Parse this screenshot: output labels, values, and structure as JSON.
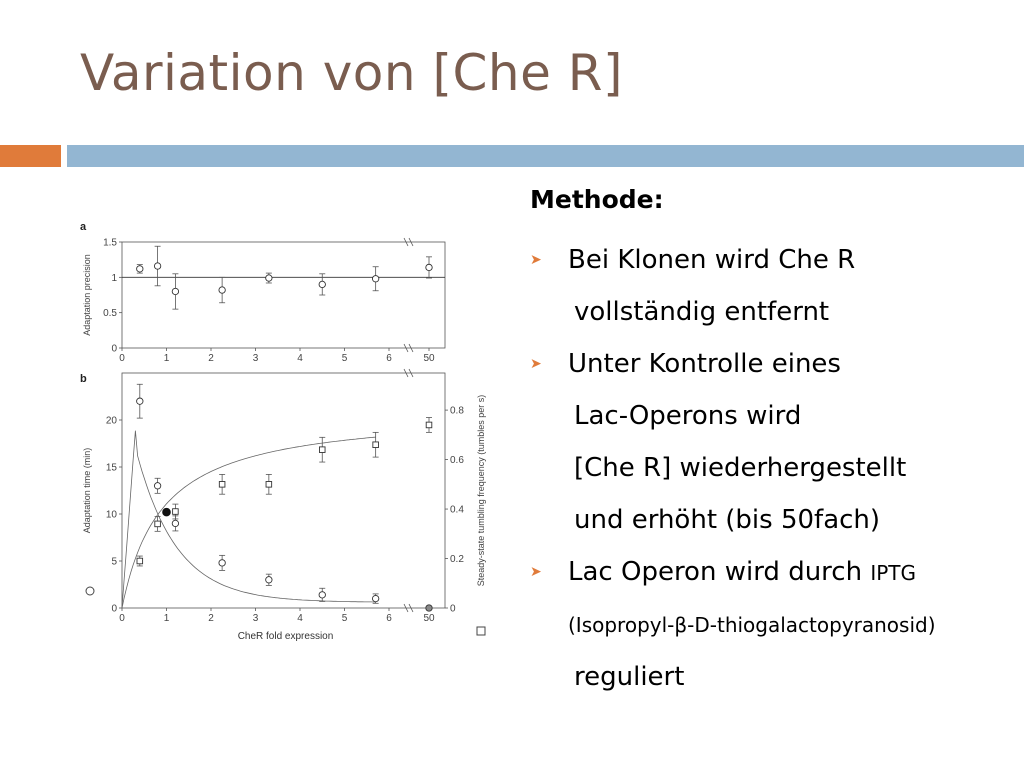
{
  "slide": {
    "title": "Variation von [Che R]",
    "heading": "Methode:",
    "bullets": [
      {
        "lines": [
          "Bei Klonen wird Che R",
          "vollständig entfernt"
        ]
      },
      {
        "lines": [
          "Unter Kontrolle eines",
          "Lac-Operons wird",
          "[Che R] wiederhergestellt",
          "und erhöht (bis 50fach)"
        ]
      },
      {
        "lines": [
          "Lac Operon wird durch ",
          "(Isopropyl-β-D-thiogalactopyranosid)",
          "reguliert"
        ],
        "small_suffix": "IPTG"
      }
    ],
    "colors": {
      "title": "#7a5d4f",
      "accent_orange": "#e07b3a",
      "accent_blue": "#93b6d2",
      "bullet_arrow": "#e07b3a"
    },
    "bullet_icon": "arrowhead-bullet-icon"
  },
  "chart_data": [
    {
      "panel": "a",
      "type": "scatter",
      "ylabel": "Adaptation precision",
      "xlabel": "",
      "xticks": [
        "0",
        "1",
        "2",
        "3",
        "4",
        "5",
        "6",
        "50"
      ],
      "yticks": [
        "0",
        "0.5",
        "1",
        "1.5"
      ],
      "ylim": [
        0,
        1.5
      ],
      "reference_line": 1,
      "series": [
        {
          "marker": "circle",
          "points": [
            {
              "x": 0.4,
              "y": 1.12,
              "err": 0.06
            },
            {
              "x": 0.8,
              "y": 1.16,
              "err": 0.28
            },
            {
              "x": 1.2,
              "y": 0.8,
              "err": 0.25
            },
            {
              "x": 2.25,
              "y": 0.82,
              "err": 0.18
            },
            {
              "x": 3.3,
              "y": 0.99,
              "err": 0.07
            },
            {
              "x": 4.5,
              "y": 0.9,
              "err": 0.15
            },
            {
              "x": 5.7,
              "y": 0.98,
              "err": 0.17
            },
            {
              "x": 50,
              "y": 1.14,
              "err": 0.15
            }
          ]
        }
      ]
    },
    {
      "panel": "b",
      "type": "scatter",
      "xlabel": "CheR fold expression",
      "ylabel": "Adaptation time (min)",
      "y2label": "Steady-state tumbling frequency (tumbles per s)",
      "xticks": [
        "0",
        "1",
        "2",
        "3",
        "4",
        "5",
        "6",
        "50"
      ],
      "yticks": [
        "0",
        "5",
        "10",
        "15",
        "20"
      ],
      "y2ticks": [
        "0",
        "0.2",
        "0.4",
        "0.6",
        "0.8"
      ],
      "ylim": [
        0,
        25
      ],
      "y2lim": [
        0,
        0.95
      ],
      "series": [
        {
          "axis": "left",
          "marker": "circle",
          "points": [
            {
              "x": 0.4,
              "y": 22,
              "err": 1.8
            },
            {
              "x": 0.8,
              "y": 13,
              "err": 0.8
            },
            {
              "x": 1.2,
              "y": 9,
              "err": 0.8
            },
            {
              "x": 2.25,
              "y": 4.8,
              "err": 0.8
            },
            {
              "x": 3.3,
              "y": 3,
              "err": 0.6
            },
            {
              "x": 4.5,
              "y": 1.4,
              "err": 0.7
            },
            {
              "x": 5.7,
              "y": 1,
              "err": 0.5
            },
            {
              "x": 50,
              "y": 0,
              "err": 0
            }
          ]
        },
        {
          "axis": "left",
          "marker": "filled-circle",
          "points": [
            {
              "x": 1,
              "y": 10.2,
              "err": 0
            }
          ]
        },
        {
          "axis": "right",
          "marker": "square",
          "points": [
            {
              "x": 0.4,
              "y": 0.19,
              "err": 0.02
            },
            {
              "x": 0.8,
              "y": 0.34,
              "err": 0.03
            },
            {
              "x": 1.2,
              "y": 0.39,
              "err": 0.03
            },
            {
              "x": 2.25,
              "y": 0.5,
              "err": 0.04
            },
            {
              "x": 3.3,
              "y": 0.5,
              "err": 0.04
            },
            {
              "x": 4.5,
              "y": 0.64,
              "err": 0.05
            },
            {
              "x": 5.7,
              "y": 0.66,
              "err": 0.05
            },
            {
              "x": 50,
              "y": 0.74,
              "err": 0.03
            }
          ]
        }
      ]
    }
  ]
}
